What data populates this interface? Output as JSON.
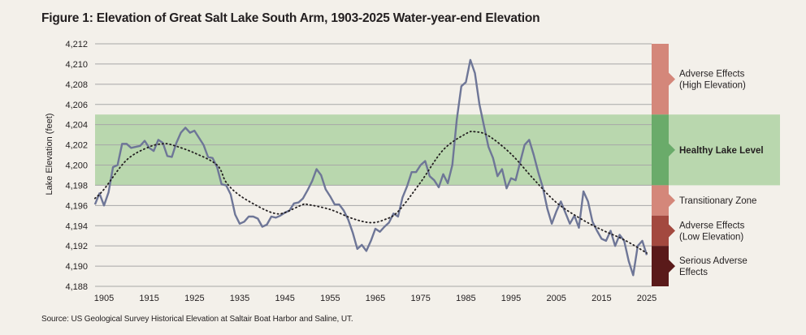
{
  "colors": {
    "background": "#f3f0ea",
    "healthy_band": "#b9d7ae",
    "grid": "#a7a7a7",
    "series_line": "#6e7697",
    "trend_line": "#231f20",
    "zone_high_adverse": "#d4877a",
    "zone_healthy": "#6aab6a",
    "zone_transitional": "#d4877a",
    "zone_low_adverse": "#a3493f",
    "zone_serious": "#5a1a1a"
  },
  "header": {
    "title": "Figure 1: Elevation of Great Salt Lake South Arm, 1903-2025 Water-year-end Elevation"
  },
  "footer": {
    "source": "Source: US Geological Survey Historical Elevation at Saltair Boat Harbor and Saline, UT."
  },
  "chart_data": {
    "type": "line",
    "title": "Figure 1: Elevation of Great Salt Lake South Arm, 1903-2025 Water-year-end Elevation",
    "xlabel": "",
    "ylabel": "Lake Elevation (feet)",
    "xlim": [
      1903,
      2026
    ],
    "ylim": [
      4188,
      4212
    ],
    "grid": true,
    "x_ticks": [
      1905,
      1915,
      1925,
      1935,
      1945,
      1955,
      1965,
      1975,
      1985,
      1995,
      2005,
      2015,
      2025
    ],
    "x_tick_labels": [
      "1905",
      "1915",
      "1925",
      "1935",
      "1945",
      "1955",
      "1965",
      "1975",
      "1985",
      "1995",
      "2005",
      "2015",
      "2025"
    ],
    "y_ticks": [
      4188,
      4190,
      4192,
      4194,
      4196,
      4198,
      4200,
      4202,
      4204,
      4206,
      4208,
      4210,
      4212
    ],
    "y_tick_labels": [
      "4,188",
      "4,190",
      "4,192",
      "4,194",
      "4,196",
      "4,198",
      "4,200",
      "4,202",
      "4,204",
      "4,206",
      "4,208",
      "4,210",
      "4,212"
    ],
    "healthy_band": [
      4198,
      4205
    ],
    "series": [
      {
        "name": "Water-year-end Elevation",
        "x": [
          1903,
          1904,
          1905,
          1906,
          1907,
          1908,
          1909,
          1910,
          1911,
          1912,
          1913,
          1914,
          1915,
          1916,
          1917,
          1918,
          1919,
          1920,
          1921,
          1922,
          1923,
          1924,
          1925,
          1926,
          1927,
          1928,
          1929,
          1930,
          1931,
          1932,
          1933,
          1934,
          1935,
          1936,
          1937,
          1938,
          1939,
          1940,
          1941,
          1942,
          1943,
          1944,
          1945,
          1946,
          1947,
          1948,
          1949,
          1950,
          1951,
          1952,
          1953,
          1954,
          1955,
          1956,
          1957,
          1958,
          1959,
          1960,
          1961,
          1962,
          1963,
          1964,
          1965,
          1966,
          1967,
          1968,
          1969,
          1970,
          1971,
          1972,
          1973,
          1974,
          1975,
          1976,
          1977,
          1978,
          1979,
          1980,
          1981,
          1982,
          1983,
          1984,
          1985,
          1986,
          1987,
          1988,
          1989,
          1990,
          1991,
          1992,
          1993,
          1994,
          1995,
          1996,
          1997,
          1998,
          1999,
          2000,
          2001,
          2002,
          2003,
          2004,
          2005,
          2006,
          2007,
          2008,
          2009,
          2010,
          2011,
          2012,
          2013,
          2014,
          2015,
          2016,
          2017,
          2018,
          2019,
          2020,
          2021,
          2022,
          2023,
          2024,
          2025
        ],
        "values": [
          4196.1,
          4197.2,
          4196.0,
          4197.3,
          4199.8,
          4200.0,
          4202.1,
          4202.1,
          4201.7,
          4201.8,
          4201.9,
          4202.4,
          4201.7,
          4201.4,
          4202.5,
          4202.2,
          4200.9,
          4200.8,
          4202.2,
          4203.2,
          4203.7,
          4203.2,
          4203.4,
          4202.7,
          4202.0,
          4200.8,
          4200.7,
          4199.8,
          4198.1,
          4198.0,
          4197.1,
          4195.1,
          4194.2,
          4194.4,
          4194.9,
          4194.9,
          4194.7,
          4193.9,
          4194.1,
          4194.9,
          4194.8,
          4195.0,
          4195.3,
          4195.5,
          4196.2,
          4196.3,
          4196.7,
          4197.5,
          4198.4,
          4199.6,
          4199.0,
          4197.6,
          4196.9,
          4196.1,
          4196.1,
          4195.5,
          4194.6,
          4193.3,
          4191.7,
          4192.1,
          4191.5,
          4192.5,
          4193.7,
          4193.4,
          4193.9,
          4194.3,
          4195.2,
          4194.9,
          4196.8,
          4197.9,
          4199.3,
          4199.3,
          4200.0,
          4200.4,
          4198.9,
          4198.5,
          4197.8,
          4199.1,
          4198.2,
          4200.0,
          4204.5,
          4207.8,
          4208.2,
          4210.4,
          4209.1,
          4206.0,
          4203.9,
          4201.8,
          4200.7,
          4198.9,
          4199.6,
          4197.7,
          4198.7,
          4198.5,
          4200.3,
          4202.0,
          4202.5,
          4201.0,
          4199.3,
          4197.8,
          4195.7,
          4194.2,
          4195.4,
          4196.4,
          4195.3,
          4194.2,
          4195.0,
          4193.8,
          4197.4,
          4196.4,
          4194.4,
          4193.5,
          4192.7,
          4192.5,
          4193.5,
          4192.0,
          4193.1,
          4192.5,
          4190.5,
          4189.1,
          4192.0,
          4192.5,
          4191.1
        ]
      },
      {
        "name": "Trend",
        "style": "dotted",
        "x": [
          1903,
          1905,
          1910,
          1915,
          1918,
          1920,
          1925,
          1930,
          1932,
          1935,
          1940,
          1943,
          1945,
          1949,
          1950,
          1955,
          1960,
          1964,
          1967,
          1970,
          1975,
          1980,
          1985,
          1987,
          1990,
          1995,
          2000,
          2005,
          2010,
          2015,
          2020,
          2025
        ],
        "values": [
          4196.7,
          4197.6,
          4200.5,
          4201.8,
          4202.1,
          4202.0,
          4201.2,
          4200.0,
          4198.3,
          4197.0,
          4195.7,
          4195.2,
          4195.3,
          4196.1,
          4196.1,
          4195.6,
          4194.7,
          4194.3,
          4194.6,
          4195.4,
          4198.3,
          4201.5,
          4203.1,
          4203.3,
          4202.9,
          4201.1,
          4198.6,
          4196.3,
          4194.8,
          4193.6,
          4192.6,
          4191.3
        ]
      }
    ],
    "zones": [
      {
        "name": "Adverse Effects (High Elevation)",
        "label_lines": [
          "Adverse Effects",
          "(High Elevation)"
        ],
        "range": [
          4205,
          4212
        ],
        "color": "#d4877a",
        "bold": false
      },
      {
        "name": "Healthy Lake Level",
        "label_lines": [
          "Healthy Lake Level"
        ],
        "range": [
          4198,
          4205
        ],
        "color": "#6aab6a",
        "bold": true
      },
      {
        "name": "Transitionary Zone",
        "label_lines": [
          "Transitionary Zone"
        ],
        "range": [
          4195,
          4198
        ],
        "color": "#d4877a",
        "bold": false
      },
      {
        "name": "Adverse Effects (Low Elevation)",
        "label_lines": [
          "Adverse Effects",
          "(Low Elevation)"
        ],
        "range": [
          4192,
          4195
        ],
        "color": "#a3493f",
        "bold": false
      },
      {
        "name": "Serious Adverse Effects",
        "label_lines": [
          "Serious Adverse",
          "Effects"
        ],
        "range": [
          4188,
          4192
        ],
        "color": "#5a1a1a",
        "bold": false
      }
    ]
  }
}
